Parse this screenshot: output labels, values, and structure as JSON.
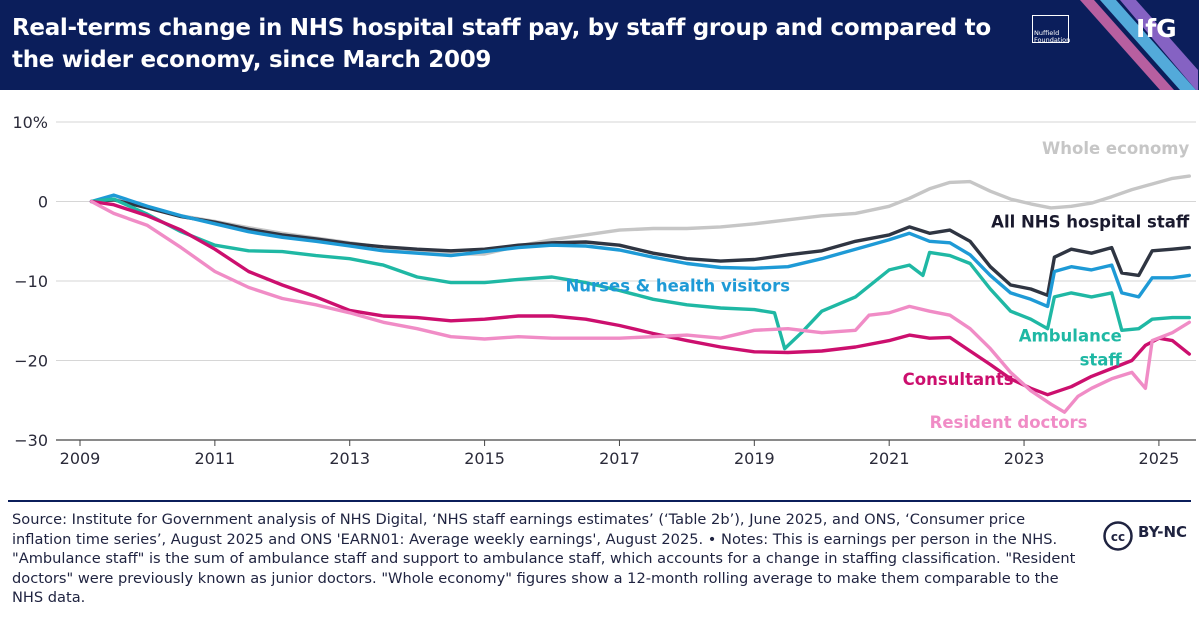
{
  "header": {
    "title": "Real-terms change in NHS hospital staff pay, by staff group and compared to the wider economy, since March 2009",
    "nuffield_logo": "Nuffield Foundation",
    "ifg_logo": "IfG"
  },
  "chart_data": {
    "type": "line",
    "title": "Real-terms change in NHS hospital staff pay, by staff group and compared to the wider economy, since March 2009",
    "xlabel": "",
    "ylabel": "",
    "xlim": [
      2009,
      2025.55
    ],
    "ylim": [
      -30,
      10
    ],
    "x_ticks": [
      2009,
      2011,
      2013,
      2015,
      2017,
      2019,
      2021,
      2023,
      2025
    ],
    "x_tick_labels": [
      "2009",
      "2011",
      "2013",
      "2015",
      "2017",
      "2019",
      "2021",
      "2023",
      "2025"
    ],
    "y_ticks": [
      10,
      0,
      -10,
      -20,
      -30
    ],
    "y_tick_labels": [
      "10%",
      "0",
      "−10",
      "−20",
      "−30"
    ],
    "grid": "horizontal",
    "legend": "direct labels at line ends",
    "series": [
      {
        "name": "Whole economy",
        "color": "#c6c6c6",
        "points": [
          [
            2009.17,
            0
          ],
          [
            2009.5,
            0.3
          ],
          [
            2010,
            -0.8
          ],
          [
            2010.5,
            -1.8
          ],
          [
            2011,
            -2.5
          ],
          [
            2011.5,
            -3.3
          ],
          [
            2012,
            -4
          ],
          [
            2012.5,
            -4.6
          ],
          [
            2013,
            -5.2
          ],
          [
            2013.5,
            -5.8
          ],
          [
            2014,
            -6.2
          ],
          [
            2014.5,
            -6.6
          ],
          [
            2015,
            -6.6
          ],
          [
            2015.5,
            -5.6
          ],
          [
            2016,
            -4.8
          ],
          [
            2016.5,
            -4.2
          ],
          [
            2017,
            -3.6
          ],
          [
            2017.5,
            -3.4
          ],
          [
            2018,
            -3.4
          ],
          [
            2018.5,
            -3.2
          ],
          [
            2019,
            -2.8
          ],
          [
            2019.5,
            -2.3
          ],
          [
            2020,
            -1.8
          ],
          [
            2020.5,
            -1.5
          ],
          [
            2021,
            -0.6
          ],
          [
            2021.3,
            0.4
          ],
          [
            2021.6,
            1.6
          ],
          [
            2021.9,
            2.4
          ],
          [
            2022.2,
            2.5
          ],
          [
            2022.5,
            1.3
          ],
          [
            2022.8,
            0.3
          ],
          [
            2023.1,
            -0.3
          ],
          [
            2023.4,
            -0.8
          ],
          [
            2023.7,
            -0.6
          ],
          [
            2024,
            -0.2
          ],
          [
            2024.3,
            0.6
          ],
          [
            2024.6,
            1.5
          ],
          [
            2024.9,
            2.2
          ],
          [
            2025.2,
            2.9
          ],
          [
            2025.45,
            3.2
          ]
        ]
      },
      {
        "name": "All NHS hospital staff",
        "color": "#2f3542",
        "points": [
          [
            2009.17,
            0
          ],
          [
            2009.5,
            0.2
          ],
          [
            2010,
            -0.8
          ],
          [
            2010.5,
            -1.9
          ],
          [
            2011,
            -2.6
          ],
          [
            2011.5,
            -3.5
          ],
          [
            2012,
            -4.2
          ],
          [
            2012.5,
            -4.7
          ],
          [
            2013,
            -5.3
          ],
          [
            2013.5,
            -5.7
          ],
          [
            2014,
            -6
          ],
          [
            2014.5,
            -6.2
          ],
          [
            2015,
            -6
          ],
          [
            2015.5,
            -5.5
          ],
          [
            2016,
            -5.2
          ],
          [
            2016.5,
            -5.1
          ],
          [
            2017,
            -5.5
          ],
          [
            2017.5,
            -6.5
          ],
          [
            2018,
            -7.2
          ],
          [
            2018.5,
            -7.5
          ],
          [
            2019,
            -7.3
          ],
          [
            2019.5,
            -6.7
          ],
          [
            2020,
            -6.2
          ],
          [
            2020.5,
            -5
          ],
          [
            2021,
            -4.2
          ],
          [
            2021.3,
            -3.2
          ],
          [
            2021.6,
            -4
          ],
          [
            2021.9,
            -3.6
          ],
          [
            2022.2,
            -5
          ],
          [
            2022.5,
            -8.2
          ],
          [
            2022.8,
            -10.5
          ],
          [
            2023.1,
            -11
          ],
          [
            2023.35,
            -11.8
          ],
          [
            2023.45,
            -7
          ],
          [
            2023.7,
            -6
          ],
          [
            2024,
            -6.5
          ],
          [
            2024.3,
            -5.8
          ],
          [
            2024.45,
            -9
          ],
          [
            2024.7,
            -9.3
          ],
          [
            2024.9,
            -6.2
          ],
          [
            2025.2,
            -6
          ],
          [
            2025.45,
            -5.8
          ]
        ]
      },
      {
        "name": "Nurses & health visitors",
        "color": "#1e9ad6",
        "points": [
          [
            2009.17,
            0
          ],
          [
            2009.5,
            0.8
          ],
          [
            2010,
            -0.6
          ],
          [
            2010.5,
            -1.8
          ],
          [
            2011,
            -2.8
          ],
          [
            2011.5,
            -3.8
          ],
          [
            2012,
            -4.5
          ],
          [
            2012.5,
            -5
          ],
          [
            2013,
            -5.6
          ],
          [
            2013.5,
            -6.2
          ],
          [
            2014,
            -6.5
          ],
          [
            2014.5,
            -6.8
          ],
          [
            2015,
            -6.3
          ],
          [
            2015.5,
            -5.8
          ],
          [
            2016,
            -5.5
          ],
          [
            2016.5,
            -5.6
          ],
          [
            2017,
            -6.1
          ],
          [
            2017.5,
            -7
          ],
          [
            2018,
            -7.8
          ],
          [
            2018.5,
            -8.3
          ],
          [
            2019,
            -8.4
          ],
          [
            2019.5,
            -8.2
          ],
          [
            2020,
            -7.2
          ],
          [
            2020.5,
            -6
          ],
          [
            2021,
            -4.8
          ],
          [
            2021.3,
            -4
          ],
          [
            2021.6,
            -5
          ],
          [
            2021.9,
            -5.2
          ],
          [
            2022.2,
            -6.7
          ],
          [
            2022.5,
            -9.3
          ],
          [
            2022.8,
            -11.5
          ],
          [
            2023.1,
            -12.3
          ],
          [
            2023.35,
            -13.2
          ],
          [
            2023.45,
            -8.8
          ],
          [
            2023.7,
            -8.2
          ],
          [
            2024,
            -8.6
          ],
          [
            2024.3,
            -8
          ],
          [
            2024.45,
            -11.5
          ],
          [
            2024.7,
            -12
          ],
          [
            2024.9,
            -9.6
          ],
          [
            2025.2,
            -9.6
          ],
          [
            2025.45,
            -9.3
          ]
        ]
      },
      {
        "name": "Ambulance staff",
        "color": "#1fb8a4",
        "points": [
          [
            2009.17,
            0
          ],
          [
            2009.5,
            0.3
          ],
          [
            2010,
            -1.6
          ],
          [
            2010.5,
            -3.8
          ],
          [
            2011,
            -5.5
          ],
          [
            2011.5,
            -6.2
          ],
          [
            2012,
            -6.3
          ],
          [
            2012.5,
            -6.8
          ],
          [
            2013,
            -7.2
          ],
          [
            2013.5,
            -8
          ],
          [
            2014,
            -9.5
          ],
          [
            2014.5,
            -10.2
          ],
          [
            2015,
            -10.2
          ],
          [
            2015.5,
            -9.8
          ],
          [
            2016,
            -9.5
          ],
          [
            2016.5,
            -10.2
          ],
          [
            2017,
            -11.2
          ],
          [
            2017.5,
            -12.3
          ],
          [
            2018,
            -13
          ],
          [
            2018.5,
            -13.4
          ],
          [
            2019,
            -13.6
          ],
          [
            2019.3,
            -14
          ],
          [
            2019.45,
            -18.5
          ],
          [
            2019.7,
            -16.5
          ],
          [
            2020,
            -13.8
          ],
          [
            2020.5,
            -12
          ],
          [
            2021,
            -8.6
          ],
          [
            2021.3,
            -8
          ],
          [
            2021.5,
            -9.3
          ],
          [
            2021.6,
            -6.4
          ],
          [
            2021.9,
            -6.8
          ],
          [
            2022.2,
            -7.8
          ],
          [
            2022.5,
            -11
          ],
          [
            2022.8,
            -13.8
          ],
          [
            2023.1,
            -14.8
          ],
          [
            2023.35,
            -16
          ],
          [
            2023.45,
            -12
          ],
          [
            2023.7,
            -11.5
          ],
          [
            2024,
            -12
          ],
          [
            2024.3,
            -11.5
          ],
          [
            2024.45,
            -16.2
          ],
          [
            2024.7,
            -16
          ],
          [
            2024.9,
            -14.8
          ],
          [
            2025.2,
            -14.6
          ],
          [
            2025.45,
            -14.6
          ]
        ]
      },
      {
        "name": "Consultants",
        "color": "#cc0f6e",
        "points": [
          [
            2009.17,
            0
          ],
          [
            2009.5,
            -0.4
          ],
          [
            2010,
            -1.8
          ],
          [
            2010.5,
            -3.6
          ],
          [
            2011,
            -6
          ],
          [
            2011.5,
            -8.8
          ],
          [
            2012,
            -10.5
          ],
          [
            2012.5,
            -12
          ],
          [
            2013,
            -13.7
          ],
          [
            2013.5,
            -14.4
          ],
          [
            2014,
            -14.6
          ],
          [
            2014.5,
            -15
          ],
          [
            2015,
            -14.8
          ],
          [
            2015.5,
            -14.4
          ],
          [
            2016,
            -14.4
          ],
          [
            2016.5,
            -14.8
          ],
          [
            2017,
            -15.6
          ],
          [
            2017.5,
            -16.6
          ],
          [
            2018,
            -17.5
          ],
          [
            2018.5,
            -18.3
          ],
          [
            2019,
            -18.9
          ],
          [
            2019.5,
            -19
          ],
          [
            2020,
            -18.8
          ],
          [
            2020.5,
            -18.3
          ],
          [
            2021,
            -17.5
          ],
          [
            2021.3,
            -16.8
          ],
          [
            2021.6,
            -17.2
          ],
          [
            2021.9,
            -17.1
          ],
          [
            2022.2,
            -18.8
          ],
          [
            2022.5,
            -20.5
          ],
          [
            2022.8,
            -22.3
          ],
          [
            2023.1,
            -23.5
          ],
          [
            2023.35,
            -24.3
          ],
          [
            2023.7,
            -23.3
          ],
          [
            2024,
            -22
          ],
          [
            2024.3,
            -21
          ],
          [
            2024.6,
            -20
          ],
          [
            2024.8,
            -18.1
          ],
          [
            2025,
            -17.2
          ],
          [
            2025.2,
            -17.5
          ],
          [
            2025.45,
            -19.2
          ]
        ]
      },
      {
        "name": "Resident doctors",
        "color": "#f08cc6",
        "points": [
          [
            2009.17,
            0
          ],
          [
            2009.5,
            -1.5
          ],
          [
            2010,
            -3
          ],
          [
            2010.5,
            -5.8
          ],
          [
            2011,
            -8.8
          ],
          [
            2011.5,
            -10.8
          ],
          [
            2012,
            -12.2
          ],
          [
            2012.5,
            -13
          ],
          [
            2013,
            -14
          ],
          [
            2013.5,
            -15.2
          ],
          [
            2014,
            -16
          ],
          [
            2014.5,
            -17
          ],
          [
            2015,
            -17.3
          ],
          [
            2015.5,
            -17
          ],
          [
            2016,
            -17.2
          ],
          [
            2016.5,
            -17.2
          ],
          [
            2017,
            -17.2
          ],
          [
            2017.5,
            -17
          ],
          [
            2018,
            -16.8
          ],
          [
            2018.5,
            -17.2
          ],
          [
            2019,
            -16.2
          ],
          [
            2019.5,
            -16
          ],
          [
            2020,
            -16.5
          ],
          [
            2020.5,
            -16.2
          ],
          [
            2020.7,
            -14.3
          ],
          [
            2021,
            -14
          ],
          [
            2021.3,
            -13.2
          ],
          [
            2021.6,
            -13.8
          ],
          [
            2021.9,
            -14.3
          ],
          [
            2022.2,
            -16
          ],
          [
            2022.5,
            -18.5
          ],
          [
            2022.8,
            -21.5
          ],
          [
            2023.1,
            -23.8
          ],
          [
            2023.4,
            -25.5
          ],
          [
            2023.6,
            -26.5
          ],
          [
            2023.8,
            -24.5
          ],
          [
            2024,
            -23.5
          ],
          [
            2024.3,
            -22.3
          ],
          [
            2024.6,
            -21.5
          ],
          [
            2024.8,
            -23.5
          ],
          [
            2024.9,
            -17.5
          ],
          [
            2025.2,
            -16.5
          ],
          [
            2025.45,
            -15.2
          ]
        ]
      }
    ],
    "labels": [
      {
        "text": "Whole economy",
        "series": "Whole economy",
        "x": 2025.45,
        "y": 6,
        "anchor": "end"
      },
      {
        "text": "All NHS hospital staff",
        "series": "All NHS hospital staff",
        "x": 2025.45,
        "y": -3.3,
        "anchor": "end"
      },
      {
        "text": "Nurses & health visitors",
        "series": "Nurses & health visitors",
        "x": 2016.2,
        "y": -11.3,
        "anchor": "start"
      },
      {
        "text": "Ambulance",
        "series": "Ambulance staff",
        "x": 2024.45,
        "y": -17.6,
        "anchor": "end"
      },
      {
        "text": "staff",
        "series": "Ambulance staff",
        "x": 2024.45,
        "y": -20.6,
        "anchor": "end"
      },
      {
        "text": "Consultants",
        "series": "Consultants",
        "x": 2021.2,
        "y": -23.1,
        "anchor": "start"
      },
      {
        "text": "Resident doctors",
        "series": "Resident doctors",
        "x": 2021.6,
        "y": -28.5,
        "anchor": "start"
      }
    ]
  },
  "source_note": "Source: Institute for Government analysis of NHS Digital, ‘NHS staff earnings estimates’ (‘Table 2b’), June 2025, and ONS, ‘Consumer price inflation time series’, August 2025 and ONS 'EARN01: Average weekly earnings', August 2025. • Notes: This is earnings per person in the NHS. \"Ambulance staff\" is the sum of ambulance staff and support to ambulance staff, which accounts for a change in staffing classification. \"Resident doctors\" were previously known as junior doctors. \"Whole economy\" figures show a 12-month rolling average to make them comparable to the NHS data.",
  "license": {
    "icon": "cc-icon",
    "text": "BY-NC"
  }
}
